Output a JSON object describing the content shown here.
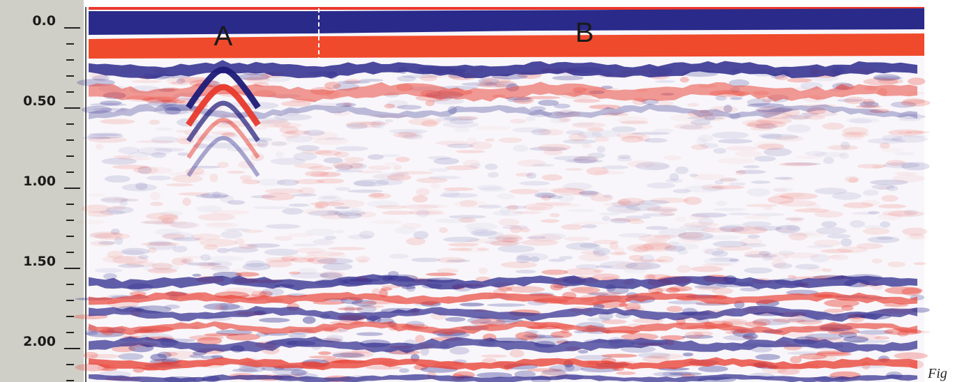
{
  "axis": {
    "labels": [
      "0.0",
      "0.50",
      "1.00",
      "1.50",
      "2.00"
    ]
  },
  "annotations": [
    "A",
    "B"
  ],
  "caption": "Fig"
}
